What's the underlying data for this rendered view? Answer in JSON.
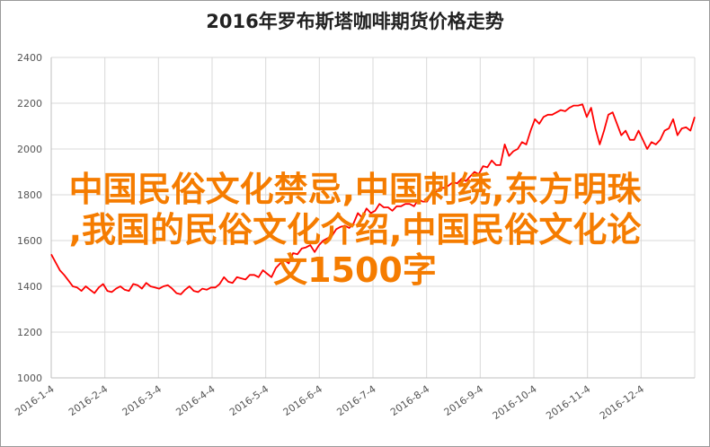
{
  "overlay": {
    "line1": "中国民俗文化禁忌,中国刺绣,东方明珠",
    "line2": ",我国的民俗文化介绍,中国民俗文化论",
    "line3": "文1500字",
    "color": "#f57c00"
  },
  "chart_data": {
    "type": "line",
    "title": "2016年罗布斯塔咖啡期货价格走势",
    "xlabel": "",
    "ylabel": "",
    "ylim": [
      1000,
      2400
    ],
    "yticks": [
      1000,
      1200,
      1400,
      1600,
      1800,
      2000,
      2200,
      2400
    ],
    "xticks": [
      "2016-1-4",
      "2016-2-4",
      "2016-3-4",
      "2016-4-4",
      "2016-5-4",
      "2016-6-4",
      "2016-7-4",
      "2016-8-4",
      "2016-9-4",
      "2016-10-4",
      "2016-11-4",
      "2016-12-4"
    ],
    "grid": true,
    "line_color": "#ff0000",
    "series": [
      {
        "values": [
          1540,
          1505,
          1470,
          1450,
          1425,
          1400,
          1395,
          1380,
          1400,
          1385,
          1370,
          1395,
          1410,
          1380,
          1375,
          1390,
          1400,
          1385,
          1380,
          1410,
          1405,
          1390,
          1415,
          1400,
          1395,
          1390,
          1400,
          1405,
          1390,
          1370,
          1365,
          1385,
          1400,
          1380,
          1375,
          1390,
          1385,
          1395,
          1395,
          1410,
          1440,
          1420,
          1415,
          1440,
          1435,
          1430,
          1450,
          1450,
          1440,
          1470,
          1455,
          1440,
          1480,
          1500,
          1515,
          1500,
          1545,
          1540,
          1565,
          1570,
          1580,
          1550,
          1580,
          1600,
          1610,
          1620,
          1650,
          1660,
          1665,
          1655,
          1675,
          1720,
          1700,
          1740,
          1720,
          1730,
          1760,
          1745,
          1745,
          1730,
          1750,
          1750,
          1760,
          1760,
          1750,
          1780,
          1770,
          1770,
          1800,
          1810,
          1830,
          1830,
          1840,
          1855,
          1850,
          1870,
          1860,
          1880,
          1900,
          1890,
          1925,
          1920,
          1950,
          1930,
          1930,
          2020,
          1970,
          1990,
          2000,
          2030,
          2020,
          2080,
          2130,
          2110,
          2140,
          2150,
          2150,
          2160,
          2170,
          2165,
          2180,
          2190,
          2190,
          2195,
          2140,
          2180,
          2090,
          2020,
          2080,
          2150,
          2160,
          2110,
          2060,
          2080,
          2040,
          2040,
          2080,
          2040,
          2000,
          2030,
          2020,
          2040,
          2080,
          2090,
          2130,
          2060,
          2090,
          2095,
          2080,
          2140
        ]
      }
    ]
  }
}
